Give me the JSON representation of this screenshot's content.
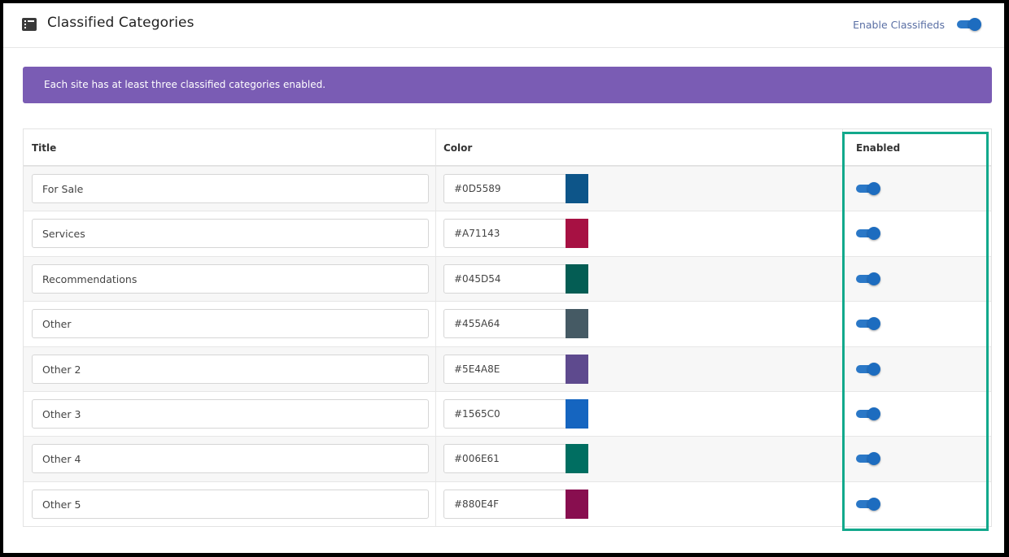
{
  "header": {
    "title": "Classified Categories",
    "icon": "list-icon",
    "enable_label": "Enable Classifieds",
    "enable_on": true
  },
  "notice": {
    "text": "Each site has at least three classified categories enabled."
  },
  "table": {
    "columns": [
      "Title",
      "Color",
      "Enabled"
    ],
    "rows": [
      {
        "title": "For Sale",
        "color": "#0D5589",
        "swatch": "#0D5589",
        "enabled": true
      },
      {
        "title": "Services",
        "color": "#A71143",
        "swatch": "#A71143",
        "enabled": true
      },
      {
        "title": "Recommendations",
        "color": "#045D54",
        "swatch": "#045D54",
        "enabled": true
      },
      {
        "title": "Other",
        "color": "#455A64",
        "swatch": "#455A64",
        "enabled": true
      },
      {
        "title": "Other 2",
        "color": "#5E4A8E",
        "swatch": "#5E4A8E",
        "enabled": true
      },
      {
        "title": "Other 3",
        "color": "#1565C0",
        "swatch": "#1565C0",
        "enabled": true
      },
      {
        "title": "Other 4",
        "color": "#006E61",
        "swatch": "#006E61",
        "enabled": true
      },
      {
        "title": "Other 5",
        "color": "#880E4F",
        "swatch": "#880E4F",
        "enabled": true
      }
    ]
  },
  "colors": {
    "accent": "#1d6cbf",
    "notice_bg": "#7a5cb4",
    "highlight": "#12a98c"
  }
}
